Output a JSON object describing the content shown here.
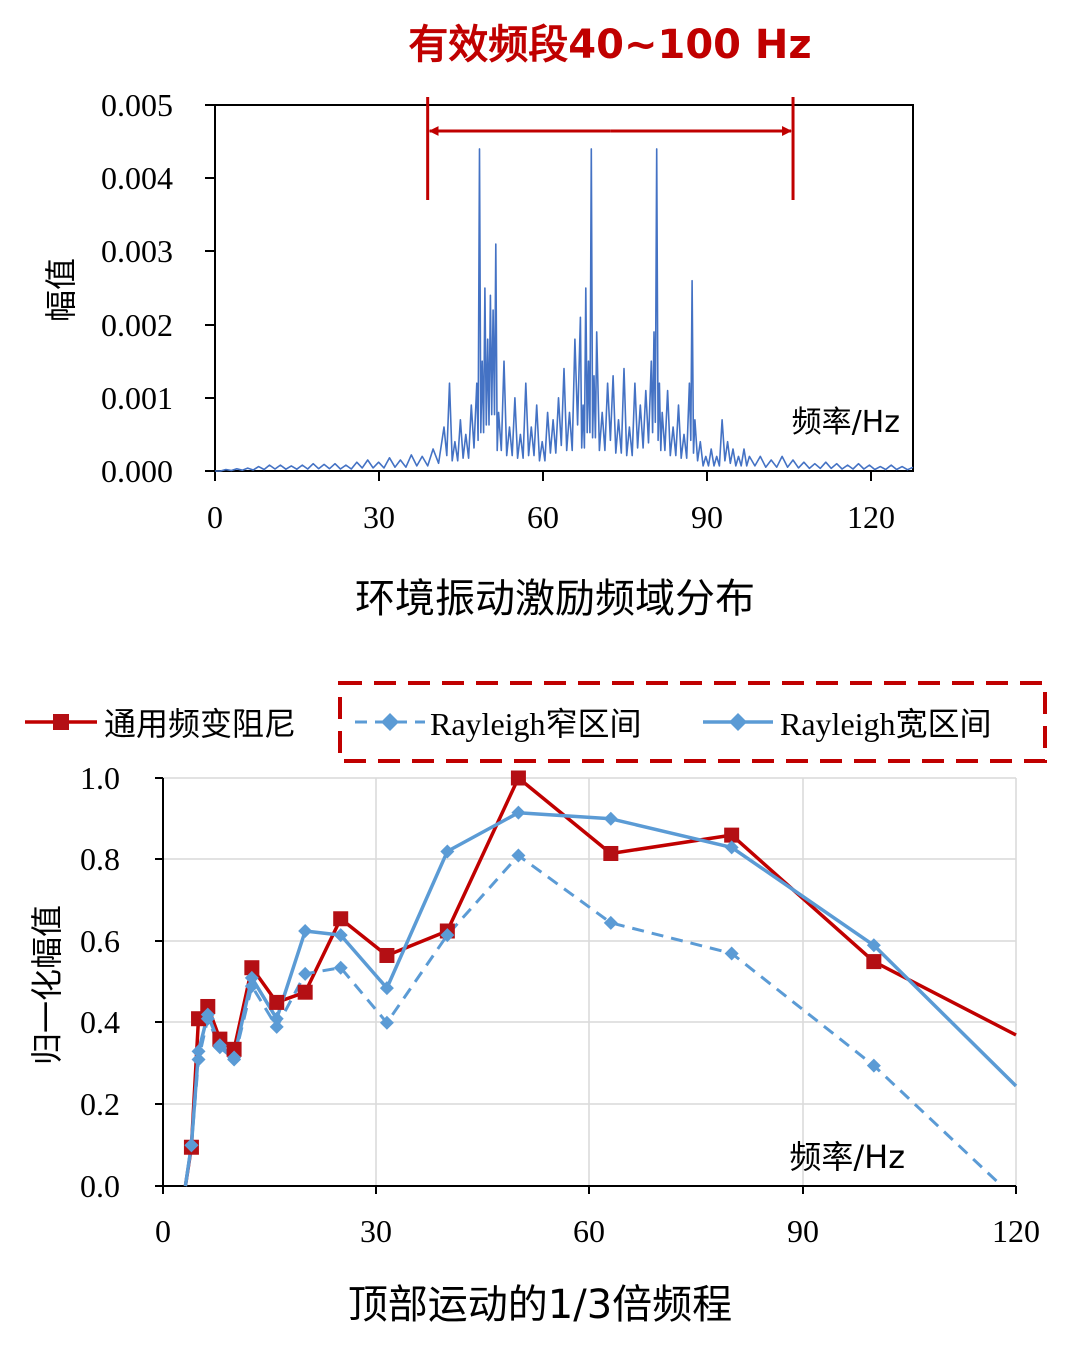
{
  "colors": {
    "red": "#c00000",
    "red_marker": "#b40f14",
    "blue": "#5b9bd5",
    "blue_spectrum": "#4472c4",
    "grid": "#d9d9d9",
    "axis": "#000000"
  },
  "chart_data": [
    {
      "type": "line",
      "title": "有效频段40~100 Hz",
      "caption": "环境振动激励频域分布",
      "xlabel": "频率/Hz",
      "ylabel": "幅值",
      "xlim": [
        0,
        128
      ],
      "ylim": [
        0,
        0.005
      ],
      "xticks": [
        0,
        30,
        60,
        90,
        120
      ],
      "yticks": [
        0.0,
        0.001,
        0.002,
        0.003,
        0.004,
        0.005
      ],
      "ytick_labels": [
        "0.000",
        "0.001",
        "0.002",
        "0.003",
        "0.004",
        "0.005"
      ],
      "band": [
        39,
        106
      ],
      "series": [
        {
          "name": "spectrum",
          "x": [
            0,
            2,
            4,
            6,
            8,
            10,
            12,
            14,
            16,
            18,
            20,
            22,
            24,
            26,
            28,
            30,
            32,
            34,
            36,
            38,
            40,
            42,
            43,
            44,
            45,
            46,
            47,
            48,
            48.5,
            49,
            49.5,
            50,
            50.5,
            51,
            51.5,
            52,
            53,
            54,
            55,
            56,
            57,
            58,
            59,
            60,
            61,
            62,
            63,
            64,
            65,
            66,
            67,
            67.5,
            68,
            68.5,
            69,
            69.5,
            70,
            71,
            72,
            73,
            74,
            75,
            76,
            77,
            78,
            79,
            80,
            80.5,
            81,
            81.5,
            82,
            83,
            84,
            85,
            86,
            87,
            87.5,
            88,
            89,
            90,
            91,
            92,
            93,
            94,
            95,
            96,
            97,
            98,
            100,
            102,
            104,
            106,
            108,
            110,
            112,
            114,
            116,
            118,
            120,
            122,
            124,
            126,
            128
          ],
          "y": [
            0,
            2e-05,
            3e-05,
            4e-05,
            6e-05,
            8e-05,
            8e-05,
            7e-05,
            8e-05,
            0.0001,
            9e-05,
            0.0001,
            8e-05,
            0.00012,
            0.00015,
            0.00012,
            0.00018,
            0.00015,
            0.00022,
            0.0002,
            0.0003,
            0.0006,
            0.0012,
            0.0004,
            0.0007,
            0.0005,
            0.0009,
            0.0012,
            0.0044,
            0.0015,
            0.0025,
            0.0018,
            0.0024,
            0.0022,
            0.0031,
            0.0008,
            0.0015,
            0.0006,
            0.001,
            0.0005,
            0.0012,
            0.0006,
            0.0009,
            0.0004,
            0.0008,
            0.0007,
            0.001,
            0.0014,
            0.0008,
            0.0018,
            0.0021,
            0.0009,
            0.0025,
            0.0015,
            0.0044,
            0.0013,
            0.0019,
            0.0008,
            0.0012,
            0.0013,
            0.0007,
            0.0014,
            0.0006,
            0.0012,
            0.0009,
            0.0011,
            0.0015,
            0.0019,
            0.0044,
            0.0012,
            0.0008,
            0.0011,
            0.0006,
            0.0009,
            0.0005,
            0.0012,
            0.0026,
            0.0007,
            0.0004,
            0.0002,
            0.0003,
            0.0002,
            0.0007,
            0.0004,
            0.0003,
            0.0002,
            0.0003,
            0.0002,
            0.0002,
            0.00015,
            0.0002,
            0.00015,
            0.00012,
            0.0001,
            0.00012,
            0.0001,
            8e-05,
            0.0001,
            8e-05,
            6e-05,
            8e-05,
            6e-05,
            5e-05
          ]
        }
      ]
    },
    {
      "type": "line",
      "caption": "顶部运动的1/3倍频程",
      "xlabel": "频率/Hz",
      "ylabel": "归一化幅值",
      "xlim": [
        0,
        120
      ],
      "ylim": [
        0,
        1.0
      ],
      "xticks": [
        0,
        30,
        60,
        90,
        120
      ],
      "yticks": [
        0.0,
        0.2,
        0.4,
        0.6,
        0.8,
        1.0
      ],
      "ytick_labels": [
        "0.0",
        "0.2",
        "0.4",
        "0.6",
        "0.8",
        "1.0"
      ],
      "grid": true,
      "series": [
        {
          "name": "通用频变阻尼",
          "style": "solid",
          "marker": "square",
          "x": [
            3.15,
            4.0,
            5.0,
            6.3,
            8.0,
            10.0,
            12.5,
            16.0,
            20.0,
            25.0,
            31.5,
            40.0,
            50.0,
            63.0,
            80.0,
            100.0,
            120.0
          ],
          "y": [
            0.0,
            0.095,
            0.41,
            0.44,
            0.36,
            0.335,
            0.535,
            0.45,
            0.475,
            0.655,
            0.565,
            0.625,
            1.0,
            0.815,
            0.86,
            0.55,
            0.37
          ],
          "markers": [
            false,
            true,
            true,
            true,
            true,
            true,
            true,
            true,
            true,
            true,
            true,
            true,
            true,
            true,
            true,
            true,
            false
          ]
        },
        {
          "name": "Rayleigh窄区间",
          "style": "dashed",
          "marker": "diamond",
          "x": [
            3.15,
            4.0,
            5.0,
            6.3,
            8.0,
            10.0,
            12.5,
            16.0,
            20.0,
            25.0,
            31.5,
            40.0,
            50.0,
            63.0,
            80.0,
            100.0,
            118.0
          ],
          "y": [
            0.0,
            0.1,
            0.31,
            0.41,
            0.34,
            0.31,
            0.49,
            0.39,
            0.52,
            0.535,
            0.4,
            0.615,
            0.81,
            0.645,
            0.57,
            0.295,
            0.0
          ],
          "markers": [
            false,
            true,
            true,
            true,
            true,
            true,
            true,
            true,
            true,
            true,
            true,
            true,
            true,
            true,
            true,
            true,
            false
          ]
        },
        {
          "name": "Rayleigh宽区间",
          "style": "solid",
          "marker": "diamond",
          "x": [
            3.15,
            4.0,
            5.0,
            6.3,
            8.0,
            10.0,
            12.5,
            16.0,
            20.0,
            25.0,
            31.5,
            40.0,
            50.0,
            63.0,
            80.0,
            100.0,
            120.0
          ],
          "y": [
            0.0,
            0.1,
            0.33,
            0.42,
            0.345,
            0.315,
            0.51,
            0.41,
            0.625,
            0.615,
            0.485,
            0.82,
            0.915,
            0.9,
            0.83,
            0.59,
            0.245
          ],
          "markers": [
            false,
            true,
            true,
            true,
            true,
            true,
            true,
            true,
            true,
            true,
            true,
            true,
            true,
            true,
            true,
            true,
            false
          ]
        }
      ]
    }
  ]
}
